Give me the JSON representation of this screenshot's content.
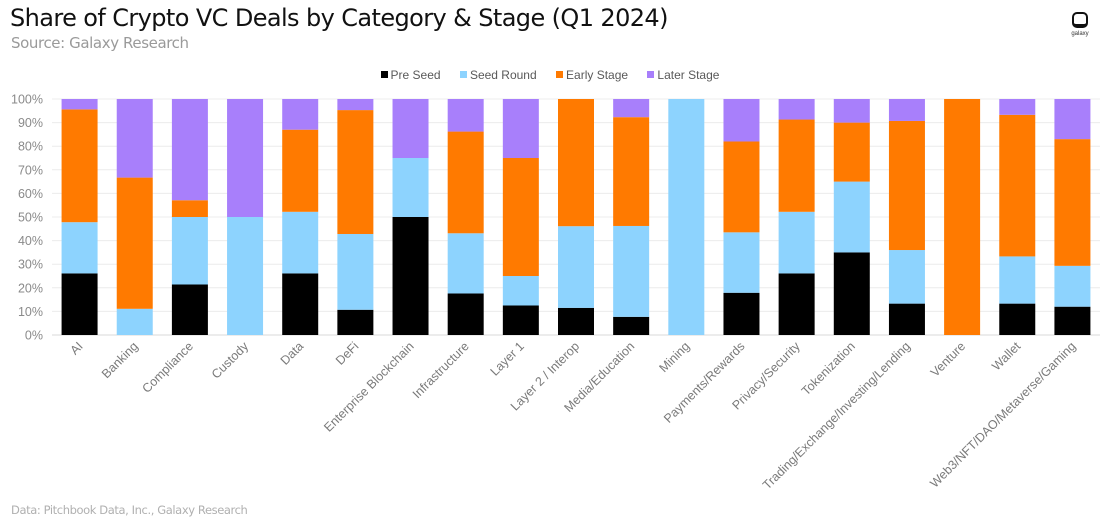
{
  "header": {
    "title": "Share of Crypto VC Deals by Category & Stage (Q1 2024)",
    "subtitle": "Source: Galaxy Research"
  },
  "logo": {
    "text": "galaxy",
    "icon": "galaxy-logo-icon"
  },
  "footer": {
    "text": "Data: Pitchbook Data, Inc., Galaxy Research"
  },
  "chart_data": {
    "type": "bar",
    "stacked": true,
    "title": "Share of Crypto VC Deals by Category & Stage (Q1 2024)",
    "xlabel": "",
    "ylabel": "",
    "ylim": [
      0,
      100
    ],
    "y_ticks": [
      "0%",
      "10%",
      "20%",
      "30%",
      "40%",
      "50%",
      "60%",
      "70%",
      "80%",
      "90%",
      "100%"
    ],
    "grid": true,
    "legend_position": "top-center",
    "categories": [
      "AI",
      "Banking",
      "Compliance",
      "Custody",
      "Data",
      "DeFi",
      "Enterprise Blockchain",
      "Infrastructure",
      "Layer 1",
      "Layer 2 / Interop",
      "Media/Education",
      "Mining",
      "Payments/Rewards",
      "Privacy/Security",
      "Tokenization",
      "Trading/Exchange/Investing/Lending",
      "Venture",
      "Wallet",
      "Web3/NFT/DAO/Metaverse/Gaming"
    ],
    "series": [
      {
        "name": "Pre Seed",
        "color": "#000000",
        "values": [
          26.1,
          0,
          21.4,
          0,
          26.1,
          10.7,
          50.0,
          17.6,
          12.5,
          11.5,
          7.7,
          0,
          17.9,
          26.1,
          35.0,
          13.3,
          0,
          13.3,
          12.0
        ]
      },
      {
        "name": "Seed Round",
        "color": "#8DD3FE",
        "values": [
          21.7,
          11.1,
          28.6,
          50.0,
          26.1,
          32.1,
          25.0,
          25.5,
          12.5,
          34.6,
          38.5,
          100.0,
          25.6,
          26.1,
          30.0,
          22.7,
          0,
          20.0,
          17.3
        ]
      },
      {
        "name": "Early Stage",
        "color": "#FF7A00",
        "values": [
          47.8,
          55.6,
          7.1,
          0,
          34.8,
          52.5,
          0,
          43.1,
          50.0,
          53.9,
          46.1,
          0,
          38.5,
          39.1,
          25.0,
          54.7,
          100.0,
          60.0,
          53.7
        ]
      },
      {
        "name": "Later Stage",
        "color": "#A87FFB",
        "values": [
          4.4,
          33.3,
          42.9,
          50.0,
          13.0,
          4.7,
          25.0,
          13.8,
          25.0,
          0,
          7.7,
          0,
          18.0,
          8.7,
          10.0,
          9.3,
          0,
          6.7,
          17.0
        ]
      }
    ]
  }
}
